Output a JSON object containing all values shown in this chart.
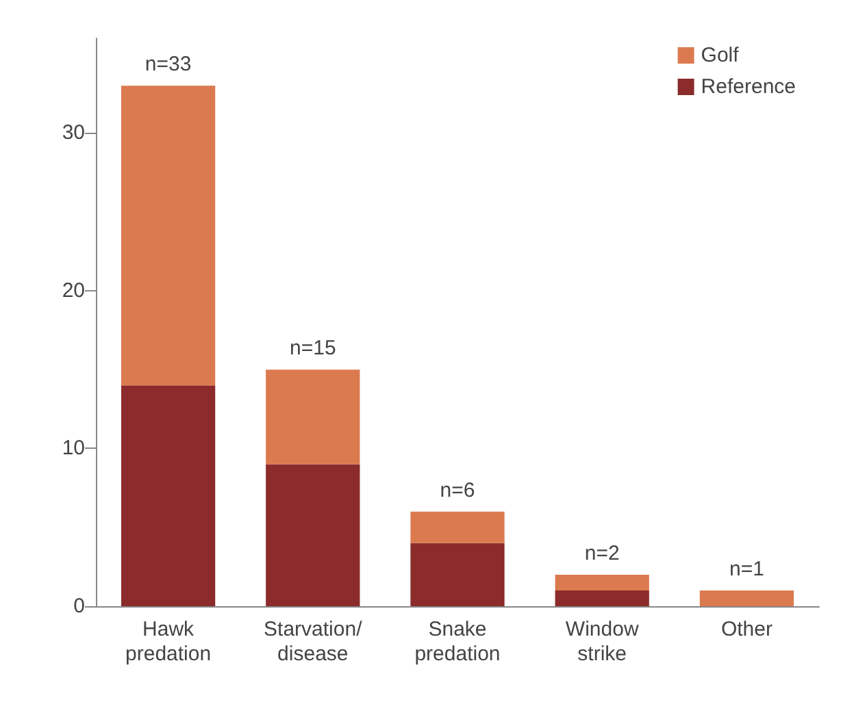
{
  "chart_data": {
    "type": "bar",
    "categories": [
      "Hawk\npredation",
      "Starvation/\ndisease",
      "Snake\npredation",
      "Window\nstrike",
      "Other"
    ],
    "series": [
      {
        "name": "Reference",
        "color": "#8b2b2b",
        "values": [
          14,
          9,
          4,
          1,
          0
        ]
      },
      {
        "name": "Golf",
        "color": "#dc7a4f",
        "values": [
          19,
          6,
          2,
          1,
          1
        ]
      }
    ],
    "stacked": true,
    "totals": [
      "n=33",
      "n=15",
      "n=6",
      "n=2",
      "n=1"
    ],
    "ylim": [
      0,
      36
    ],
    "yticks": [
      0,
      10,
      20,
      30
    ],
    "grid": false,
    "legend": "top right"
  }
}
